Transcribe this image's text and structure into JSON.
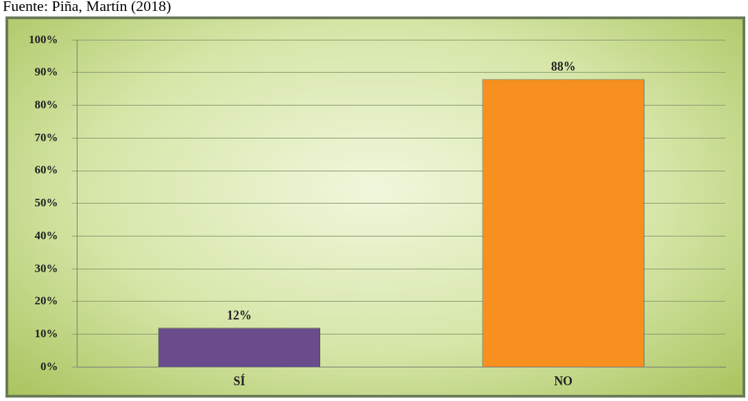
{
  "chart_data": {
    "type": "bar",
    "categories": [
      "SÍ",
      "NO"
    ],
    "values": [
      12,
      88
    ],
    "colors": [
      "#6a4c8c",
      "#f7901e"
    ],
    "value_labels": [
      "12%",
      "88%"
    ],
    "ylim": [
      0,
      100
    ],
    "yticks": [
      {
        "value": 0,
        "label": "0%"
      },
      {
        "value": 10,
        "label": "10%"
      },
      {
        "value": 20,
        "label": "20%"
      },
      {
        "value": 30,
        "label": "30%"
      },
      {
        "value": 40,
        "label": "40%"
      },
      {
        "value": 50,
        "label": "50%"
      },
      {
        "value": 60,
        "label": "60%"
      },
      {
        "value": 70,
        "label": "70%"
      },
      {
        "value": 80,
        "label": "80%"
      },
      {
        "value": 90,
        "label": "90%"
      },
      {
        "value": 100,
        "label": "100%"
      }
    ],
    "grid": "y",
    "annotations": [
      "Fuente: Piña, Martín (2018)"
    ]
  }
}
